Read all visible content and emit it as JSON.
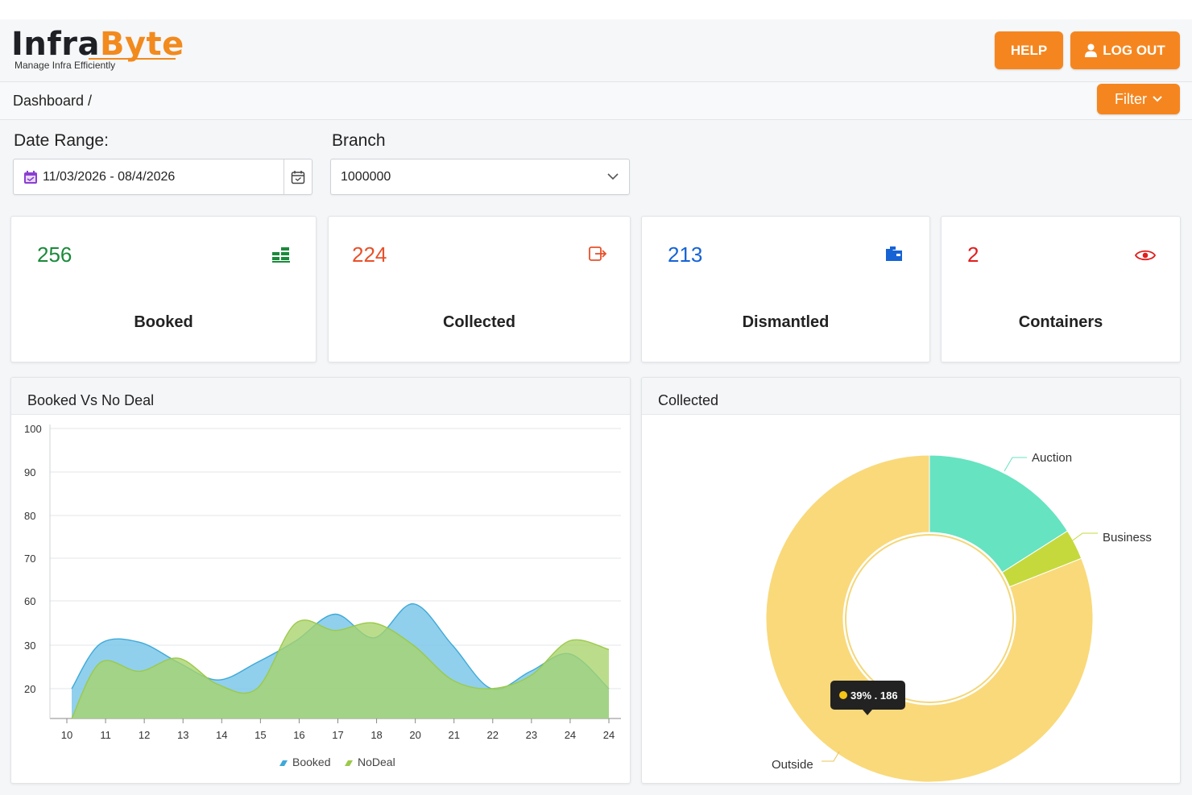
{
  "header": {
    "logo_part1": "Infra",
    "logo_part2": "Byte",
    "tagline": "Manage Infra Efficiently",
    "help_label": "HELP",
    "logout_label": "LOG OUT"
  },
  "breadcrumb": {
    "text": "Dashboard  /"
  },
  "toolbar": {
    "filter_label": "Filter"
  },
  "filters": {
    "date_label": "Date Range:",
    "date_value": "11/03/2026 - 08/4/2026",
    "branch_label": "Branch",
    "branch_value": "1000000"
  },
  "stats": [
    {
      "value": "256",
      "label": "Booked",
      "color": "#1a8a3a",
      "icon": "stacked-bars-icon"
    },
    {
      "value": "224",
      "label": "Collected",
      "color": "#e8502a",
      "icon": "sign-out-icon"
    },
    {
      "value": "213",
      "label": "Dismantled",
      "color": "#1663d6",
      "icon": "folder-icon"
    },
    {
      "value": "2",
      "label": "Containers",
      "color": "#e21d1d",
      "icon": "eye-icon"
    }
  ],
  "colors": {
    "accent": "#f5861f",
    "booked": "#6cc6e8",
    "nodeal": "#b5d96a",
    "outside": "#f9d97a",
    "auction": "#66e3c1",
    "business": "#c5d93c"
  },
  "chart_data": [
    {
      "type": "area",
      "title": "Booked Vs No Deal",
      "x": [
        "10",
        "11",
        "12",
        "13",
        "14",
        "15",
        "16",
        "17",
        "18",
        "20",
        "21",
        "22",
        "23",
        "24",
        "24"
      ],
      "y_ticks": [
        "100",
        "90",
        "80",
        "70",
        "60",
        "30",
        "20"
      ],
      "series": [
        {
          "name": "Booked",
          "values": [
            20,
            31,
            32,
            26,
            22,
            26,
            33,
            51,
            35,
            58,
            30,
            20,
            24,
            28,
            20
          ]
        },
        {
          "name": "NoDeal",
          "values": [
            15,
            26,
            24,
            27,
            21,
            20,
            45,
            40,
            45,
            30,
            22,
            20,
            23,
            33,
            29
          ]
        }
      ],
      "legend": "bottom",
      "grid": true
    },
    {
      "type": "pie",
      "title": "Collected",
      "labels": [
        "Auction",
        "Business",
        "Outside"
      ],
      "values": [
        16,
        3,
        81
      ],
      "tooltip": "39% . 186"
    }
  ]
}
